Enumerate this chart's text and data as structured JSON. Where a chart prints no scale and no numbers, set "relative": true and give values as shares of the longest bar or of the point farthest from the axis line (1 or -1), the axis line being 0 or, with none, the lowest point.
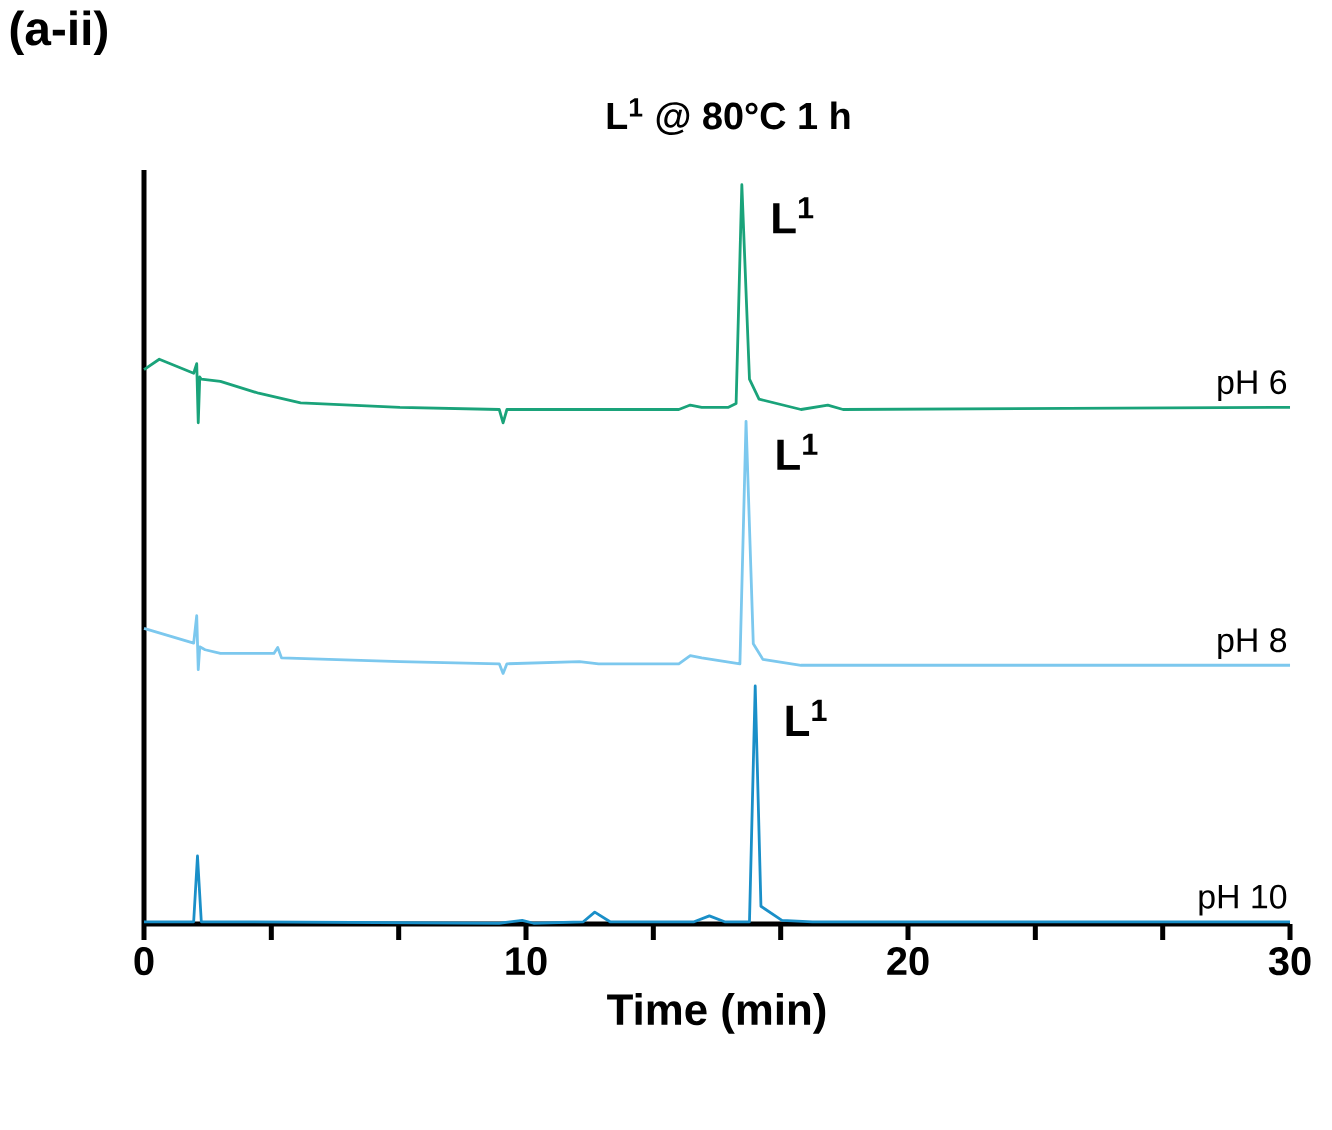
{
  "chart_data": {
    "type": "line",
    "relative": true,
    "title": "L$^{1}$ @ 80°C 1 h",
    "xlabel": "Time (min)",
    "xlim": [
      0,
      30
    ],
    "xticks": [
      0,
      {
        "value": 3.333,
        "label": null
      },
      {
        "value": 6.667,
        "label": null
      },
      10,
      {
        "value": 13.333,
        "label": null
      },
      {
        "value": 16.667,
        "label": null
      },
      20,
      {
        "value": 23.333,
        "label": null
      },
      {
        "value": 26.667,
        "label": null
      },
      30
    ],
    "annotations": [
      "(a-ii)",
      {
        "text": "L$^{1}$",
        "x": 15.65,
        "y": 1.0
      },
      {
        "text": "L$^{1}$",
        "x": 15.76,
        "y": 0.68
      },
      {
        "text": "L$^{1}$",
        "x": 16.0,
        "y": 0.32
      }
    ],
    "series": [
      {
        "name": "pH 6",
        "color": "#1aa37a",
        "x": [
          0,
          0.4,
          1.3,
          1.38,
          1.42,
          1.46,
          1.5,
          2.0,
          3.0,
          4.1,
          6.7,
          9.3,
          9.4,
          9.5,
          11.9,
          14.0,
          14.3,
          14.6,
          15.3,
          15.5,
          15.65,
          15.85,
          16.1,
          17.2,
          17.9,
          18.3,
          30
        ],
        "values": [
          0.75,
          0.764,
          0.745,
          0.758,
          0.678,
          0.74,
          0.737,
          0.734,
          0.718,
          0.705,
          0.699,
          0.696,
          0.678,
          0.696,
          0.696,
          0.696,
          0.702,
          0.699,
          0.699,
          0.704,
          1.0,
          0.737,
          0.71,
          0.696,
          0.702,
          0.696,
          0.699
        ]
      },
      {
        "name": "pH 8",
        "color": "#7cc8ee",
        "x": [
          0,
          1.3,
          1.38,
          1.42,
          1.46,
          1.6,
          2.0,
          3.4,
          3.5,
          3.6,
          6.7,
          9.3,
          9.4,
          9.5,
          11.4,
          11.9,
          14.0,
          14.3,
          14.6,
          15.6,
          15.76,
          15.95,
          16.2,
          17.2,
          30
        ],
        "values": [
          0.4,
          0.38,
          0.417,
          0.344,
          0.375,
          0.371,
          0.366,
          0.366,
          0.374,
          0.36,
          0.355,
          0.352,
          0.339,
          0.352,
          0.355,
          0.352,
          0.352,
          0.363,
          0.36,
          0.352,
          0.68,
          0.379,
          0.358,
          0.35,
          0.35
        ]
      },
      {
        "name": "pH 10",
        "color": "#1a8fc8",
        "x": [
          0,
          1.3,
          1.4,
          1.5,
          2.5,
          9.3,
          9.9,
          10.2,
          11.5,
          11.8,
          12.2,
          14.4,
          14.8,
          15.2,
          15.85,
          16.0,
          16.15,
          16.7,
          17.5,
          30
        ],
        "values": [
          0.003,
          0.003,
          0.092,
          0.003,
          0.003,
          0.001,
          0.005,
          0.001,
          0.003,
          0.016,
          0.003,
          0.003,
          0.011,
          0.003,
          0.003,
          0.322,
          0.024,
          0.005,
          0.003,
          0.003
        ]
      }
    ]
  }
}
